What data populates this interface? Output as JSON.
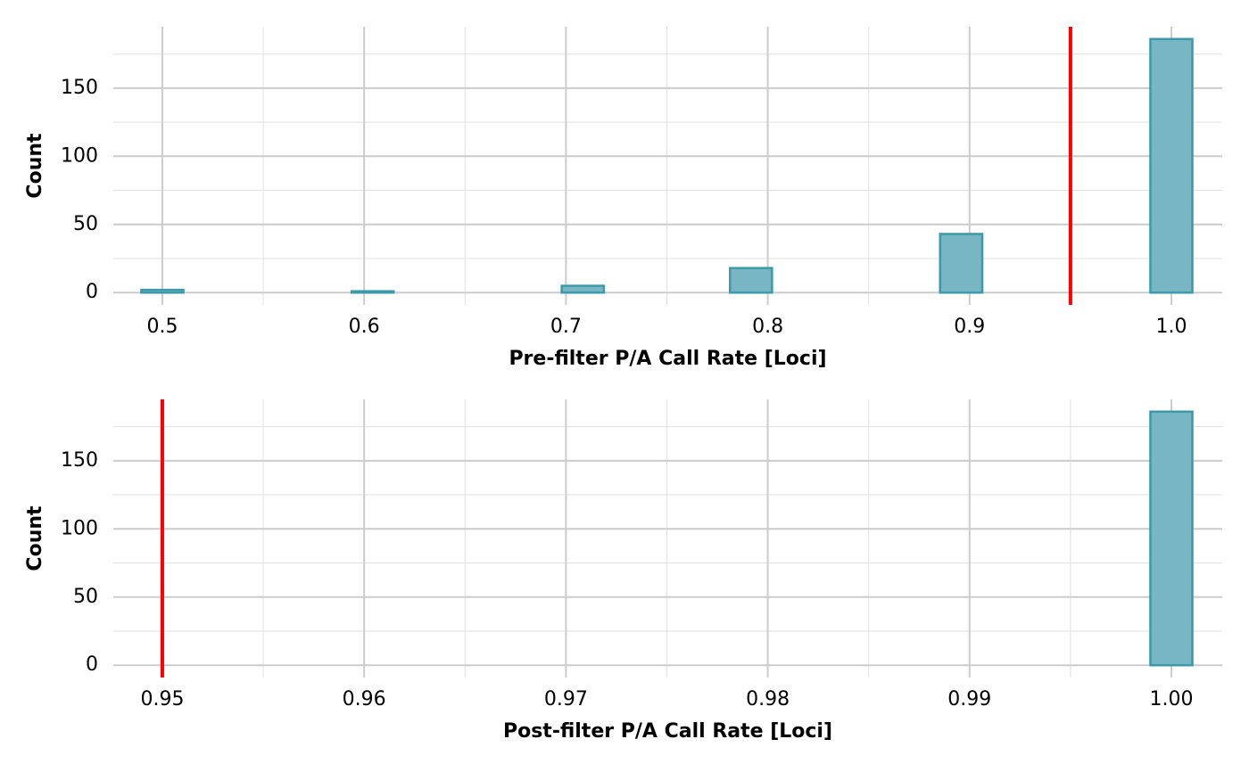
{
  "chart_data": [
    {
      "type": "histogram",
      "x_label": "Pre-filter P/A Call Rate [Loci]",
      "y_label": "Count",
      "bins": [
        0.4896,
        0.5104,
        0.5313,
        0.5521,
        0.5729,
        0.5938,
        0.6146,
        0.6354,
        0.6563,
        0.6771,
        0.6979,
        0.7188,
        0.7396,
        0.7604,
        0.7813,
        0.8021,
        0.8229,
        0.8438,
        0.8646,
        0.8854,
        0.9063,
        0.9271,
        0.9479,
        0.9688,
        0.9896,
        1.0104
      ],
      "counts": [
        2,
        0,
        0,
        0,
        0,
        1,
        0,
        0,
        0,
        0,
        5,
        0,
        0,
        0,
        18,
        0,
        0,
        0,
        0,
        43,
        0,
        0,
        0,
        0,
        186
      ],
      "color": "#78b6c4",
      "edge_color": "#3a9aab",
      "xlim": [
        0.4757,
        1.0252
      ],
      "ylim": [
        -9,
        195
      ],
      "xticks": [
        0.5,
        0.6,
        0.7,
        0.8,
        0.9,
        {
          "value": 1.0,
          "label": "1.0"
        }
      ],
      "minor_xticks": [
        0.55,
        0.65,
        0.75,
        0.85,
        0.95
      ],
      "yticks": [
        0,
        50,
        100,
        150
      ],
      "minor_yticks": [
        25,
        75,
        125,
        175
      ],
      "vline": {
        "value": 0.95,
        "color": "#ff0000"
      },
      "grid": true
    },
    {
      "type": "histogram",
      "x_label": "Post-filter P/A Call Rate [Loci]",
      "y_label": "Count",
      "bins": [
        0.94896,
        0.95104,
        0.95313,
        0.95521,
        0.95729,
        0.95938,
        0.96146,
        0.96354,
        0.96563,
        0.96771,
        0.96979,
        0.97188,
        0.97396,
        0.97604,
        0.97813,
        0.98021,
        0.98229,
        0.98438,
        0.98646,
        0.98854,
        0.99063,
        0.99271,
        0.99479,
        0.99688,
        0.99896,
        1.00104
      ],
      "counts": [
        0,
        0,
        0,
        0,
        0,
        0,
        0,
        0,
        0,
        0,
        0,
        0,
        0,
        0,
        0,
        0,
        0,
        0,
        0,
        0,
        0,
        0,
        0,
        0,
        186
      ],
      "color": "#78b6c4",
      "edge_color": "#3a9aab",
      "xlim": [
        0.94757,
        1.00252
      ],
      "ylim": [
        -9,
        195
      ],
      "xticks": [
        0.95,
        0.96,
        0.97,
        0.98,
        0.99,
        {
          "value": 1.0,
          "label": "1.00"
        }
      ],
      "minor_xticks": [
        0.955,
        0.965,
        0.975,
        0.985,
        0.995
      ],
      "yticks": [
        0,
        50,
        100,
        150
      ],
      "minor_yticks": [
        25,
        75,
        125,
        175
      ],
      "vline": {
        "value": 0.95,
        "color": "#ff0000"
      },
      "grid": true
    }
  ]
}
